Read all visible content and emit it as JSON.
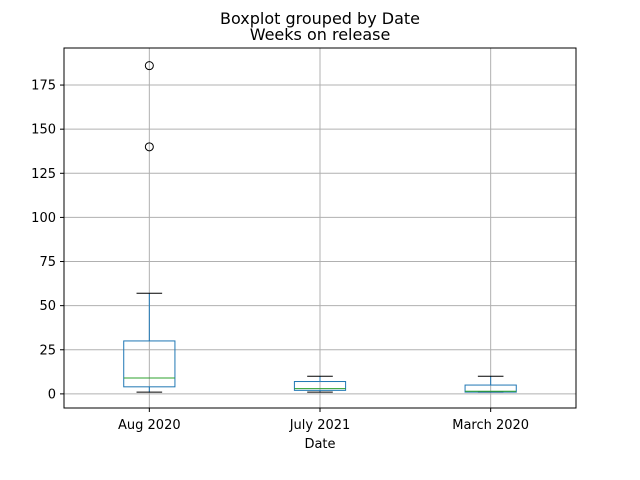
{
  "chart_data": {
    "type": "box",
    "title": "Boxplot grouped by Date",
    "subtitle": "Weeks on release",
    "xlabel": "Date",
    "ylabel": "",
    "categories": [
      "Aug 2020",
      "July 2021",
      "March 2020"
    ],
    "yticks": [
      0,
      25,
      50,
      75,
      100,
      125,
      150,
      175
    ],
    "ylim": [
      -8,
      196
    ],
    "grid": true,
    "boxes": [
      {
        "category": "Aug 2020",
        "whisker_low": 1,
        "q1": 4,
        "median": 9,
        "q3": 30,
        "whisker_high": 57,
        "outliers": [
          140,
          186
        ]
      },
      {
        "category": "July 2021",
        "whisker_low": 1,
        "q1": 2,
        "median": 3,
        "q3": 7,
        "whisker_high": 10,
        "outliers": []
      },
      {
        "category": "March 2020",
        "whisker_low": 1,
        "q1": 1,
        "median": 1.5,
        "q3": 5,
        "whisker_high": 10,
        "outliers": []
      }
    ],
    "colors": {
      "box": "#1f77b4",
      "median": "#2ca02c",
      "whisker": "#000000",
      "grid": "#b0b0b0"
    }
  }
}
